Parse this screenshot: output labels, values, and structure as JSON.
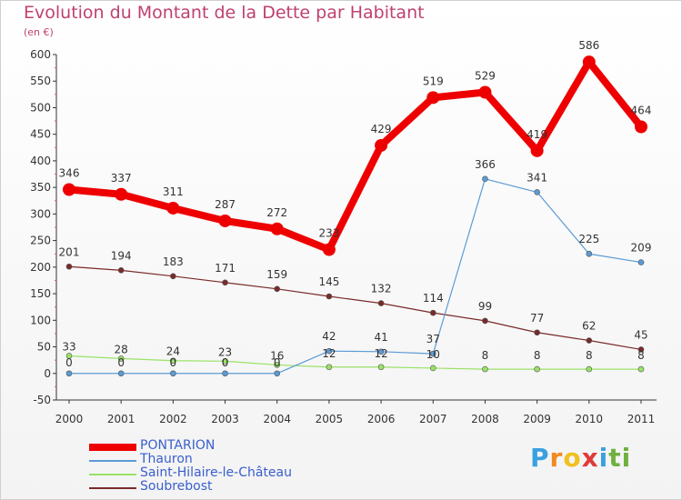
{
  "title": "Evolution du Montant de la Dette par Habitant",
  "unit": "(en €)",
  "logo": {
    "text": "Proxiti",
    "letters": [
      "P",
      "r",
      "o",
      "x",
      "i",
      "t",
      "i"
    ],
    "colors": [
      "#3aa0e0",
      "#f08a20",
      "#f0c020",
      "#e03a3a",
      "#3aa0e0",
      "#70b040",
      "#70b040"
    ]
  },
  "chart_data": {
    "type": "line",
    "title": "Evolution du Montant de la Dette par Habitant",
    "ylabel": "(en €)",
    "xlabel": "",
    "x": [
      "2000",
      "2001",
      "2002",
      "2003",
      "2004",
      "2005",
      "2006",
      "2007",
      "2008",
      "2009",
      "2010",
      "2011"
    ],
    "yticks": [
      -50,
      0,
      50,
      100,
      150,
      200,
      250,
      300,
      350,
      400,
      450,
      500,
      550,
      600
    ],
    "ylim": [
      -50,
      600
    ],
    "grid": false,
    "legend_position": "bottom-left",
    "series": [
      {
        "name": "PONTARION",
        "color": "#ee0000",
        "values": [
          346,
          337,
          311,
          287,
          272,
          233,
          429,
          519,
          529,
          419,
          586,
          464
        ],
        "labels": [
          "346",
          "337",
          "311",
          "287",
          "272",
          "233",
          "429",
          "519",
          "529",
          "419",
          "586",
          "464"
        ]
      },
      {
        "name": "Thauron",
        "color": "#5b9bd5",
        "values": [
          0,
          0,
          0,
          0,
          0,
          42,
          41,
          37,
          366,
          341,
          225,
          209
        ],
        "labels": [
          "0",
          "0",
          "0",
          "0",
          "0",
          "42",
          "41",
          "37",
          "366",
          "341",
          "225",
          "209"
        ]
      },
      {
        "name": "Saint-Hilaire-le-Château",
        "color": "#99e266",
        "values": [
          33,
          28,
          24,
          23,
          16,
          12,
          12,
          10,
          8,
          8,
          8,
          8
        ],
        "labels": [
          "33",
          "28",
          "24",
          "23",
          "16",
          "12",
          "12",
          "10",
          "8",
          "8",
          "8",
          "8"
        ]
      },
      {
        "name": "Soubrebost",
        "color": "#7a2a2a",
        "values": [
          201,
          194,
          183,
          171,
          159,
          145,
          132,
          114,
          99,
          77,
          62,
          45
        ],
        "labels": [
          "201",
          "194",
          "183",
          "171",
          "159",
          "145",
          "132",
          "114",
          "99",
          "77",
          "62",
          "45"
        ]
      }
    ]
  }
}
